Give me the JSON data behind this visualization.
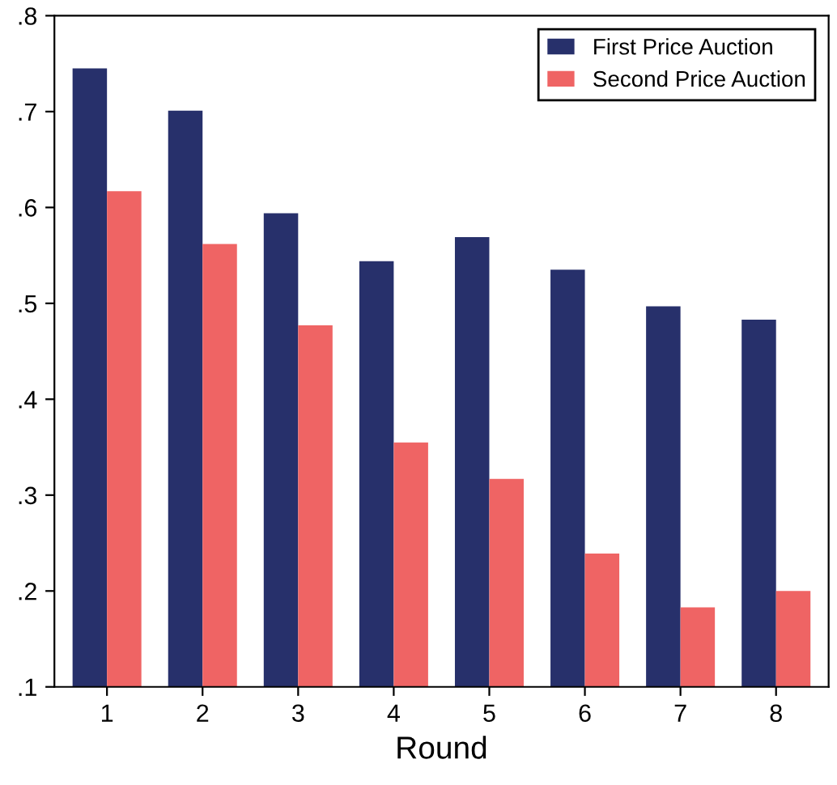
{
  "chart_data": {
    "type": "bar",
    "xlabel": "Round",
    "categories": [
      "1",
      "2",
      "3",
      "4",
      "5",
      "6",
      "7",
      "8"
    ],
    "series": [
      {
        "name": "First Price Auction",
        "color": "#27306b",
        "values": [
          0.745,
          0.701,
          0.594,
          0.544,
          0.569,
          0.535,
          0.497,
          0.483
        ]
      },
      {
        "name": "Second Price Auction",
        "color": "#ef6464",
        "values": [
          0.617,
          0.562,
          0.477,
          0.355,
          0.317,
          0.239,
          0.183,
          0.2
        ]
      }
    ],
    "ylim": [
      0.1,
      0.8
    ],
    "yticks": [
      {
        "value": 0.1,
        "label": ".1"
      },
      {
        "value": 0.2,
        "label": ".2"
      },
      {
        "value": 0.3,
        "label": ".3"
      },
      {
        "value": 0.4,
        "label": ".4"
      },
      {
        "value": 0.5,
        "label": ".5"
      },
      {
        "value": 0.6,
        "label": ".6"
      },
      {
        "value": 0.7,
        "label": ".7"
      },
      {
        "value": 0.8,
        "label": ".8"
      }
    ],
    "legend": "top right",
    "grid": false
  }
}
